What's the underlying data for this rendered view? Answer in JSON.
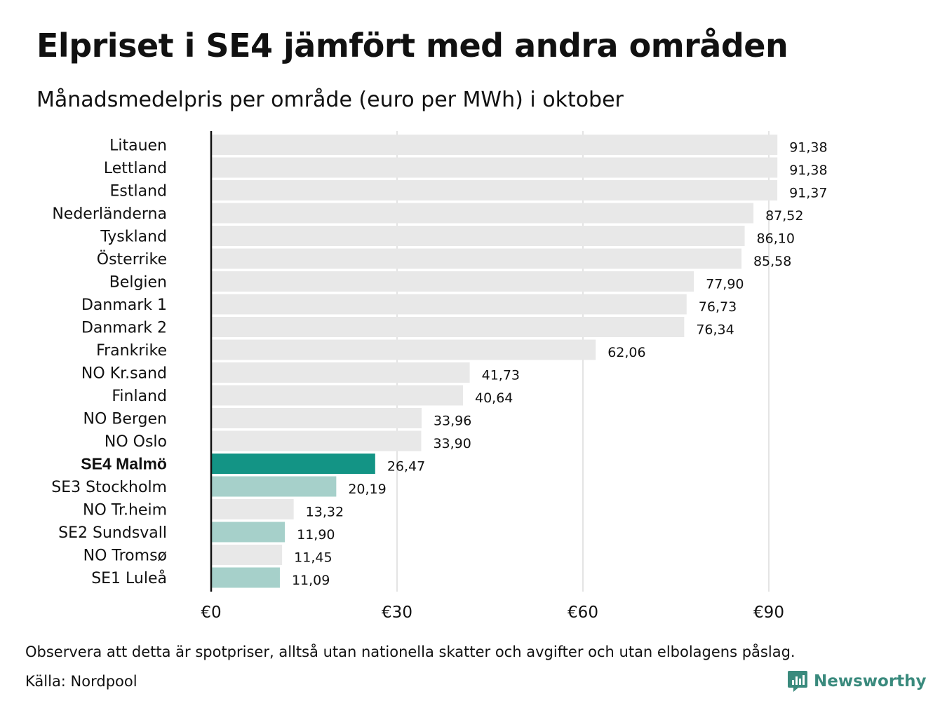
{
  "title": "Elpriset i SE4 jämfört med andra områden",
  "subtitle": "Månadsmedelpris per område (euro per MWh) i oktober",
  "note": "Observera att detta är spotpriser, alltså utan nationella skatter och avgifter och utan elbolagens påslag.",
  "source": "Källa: Nordpool",
  "brand": {
    "name": "Newsworthy",
    "icon": "newsworthy-logo-icon"
  },
  "colors": {
    "default_bar": "#e8e8e8",
    "highlight_bar": "#139485",
    "swedish_bar": "#a6d0ca",
    "axis": "#111111",
    "grid": "#c8c8c8"
  },
  "chart_data": {
    "type": "bar",
    "orientation": "horizontal",
    "categories": [
      "Litauen",
      "Lettland",
      "Estland",
      "Nederländerna",
      "Tyskland",
      "Österrike",
      "Belgien",
      "Danmark  1",
      "Danmark  2",
      "Frankrike",
      "NO Kr.sand",
      "Finland",
      "NO Bergen",
      "NO Oslo",
      "SE4 Malmö",
      "SE3  Stockholm",
      "NO Tr.heim",
      "SE2  Sundsvall",
      "NO Tromsø",
      "SE1  Luleå"
    ],
    "values": [
      91.38,
      91.38,
      91.37,
      87.52,
      86.1,
      85.58,
      77.9,
      76.73,
      76.34,
      62.06,
      41.73,
      40.64,
      33.96,
      33.9,
      26.47,
      20.19,
      13.32,
      11.9,
      11.45,
      11.09
    ],
    "value_labels": [
      "91,38",
      "91,38",
      "91,37",
      "87,52",
      "86,10",
      "85,58",
      "77,90",
      "76,73",
      "76,34",
      "62,06",
      "41,73",
      "40,64",
      "33,96",
      "33,90",
      "26,47",
      "20,19",
      "13,32",
      "11,90",
      "11,45",
      "11,09"
    ],
    "bar_group": [
      "other",
      "other",
      "other",
      "other",
      "other",
      "other",
      "other",
      "other",
      "other",
      "other",
      "other",
      "other",
      "other",
      "other",
      "highlight",
      "swedish",
      "other",
      "swedish",
      "other",
      "swedish"
    ],
    "highlight_category": "SE4 Malmö",
    "xticks": [
      0,
      30,
      60,
      90
    ],
    "xtick_labels": [
      "€0",
      "€30",
      "€60",
      "€90"
    ],
    "xlim": [
      0,
      100
    ],
    "grid": true,
    "xlabel": "",
    "ylabel": ""
  }
}
